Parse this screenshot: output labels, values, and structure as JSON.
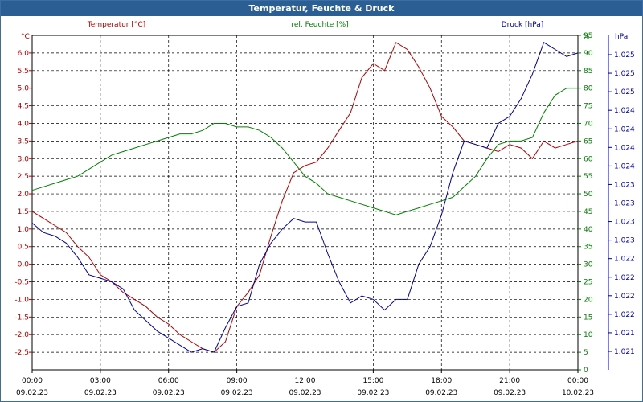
{
  "window": {
    "title": "Temperatur, Feuchte & Druck"
  },
  "colors": {
    "temp": "#b00000",
    "hum": "#008000",
    "press": "#00009c",
    "grid": "#000000"
  },
  "chart_data": {
    "type": "line",
    "title": "Temperatur, Feuchte & Druck",
    "axes": {
      "temp": {
        "label": "Temperatur [°C]",
        "unit": "°C",
        "min": -3.0,
        "max": 6.5,
        "ticks": [
          -2.5,
          -2.0,
          -1.5,
          -1.0,
          -0.5,
          0.0,
          0.5,
          1.0,
          1.5,
          2.0,
          2.5,
          3.0,
          3.5,
          4.0,
          4.5,
          5.0,
          5.5,
          6.0
        ],
        "tick_labels": [
          "-2.5",
          "-2.0",
          "-1.5",
          "-1.0",
          "-0.5",
          "0.0",
          "0.5",
          "1.0",
          "1.5",
          "2.0",
          "2.5",
          "3.0",
          "3.5",
          "4.0",
          "4.5",
          "5.0",
          "5.5",
          "6.0"
        ]
      },
      "hum": {
        "label": "rel. Feuchte [%]",
        "unit": "%",
        "min": 0,
        "max": 95,
        "ticks": [
          0,
          5,
          10,
          15,
          20,
          25,
          30,
          35,
          40,
          45,
          50,
          55,
          60,
          65,
          70,
          75,
          80,
          85,
          90,
          95
        ],
        "tick_labels": [
          "0",
          "5",
          "10",
          "15",
          "20",
          "25",
          "30",
          "35",
          "40",
          "45",
          "50",
          "55",
          "60",
          "65",
          "70",
          "75",
          "80",
          "85",
          "90",
          "95"
        ]
      },
      "press": {
        "label": "",
        "unit": "hPa",
        "tick_labels": [
          "1.025",
          "1.025",
          "1.025",
          "1.024",
          "1.024",
          "1.024",
          "1.024",
          "1.023",
          "1.023",
          "1.023",
          "1.023",
          "1.022",
          "1.022",
          "1.022",
          "1.022",
          "1.021",
          "1.021"
        ]
      }
    },
    "x_ticks": [
      {
        "time": "00:00",
        "date": "09.02.23"
      },
      {
        "time": "03:00",
        "date": "09.02.23"
      },
      {
        "time": "06:00",
        "date": "09.02.23"
      },
      {
        "time": "09:00",
        "date": "09.02.23"
      },
      {
        "time": "12:00",
        "date": "09.02.23"
      },
      {
        "time": "15:00",
        "date": "09.02.23"
      },
      {
        "time": "18:00",
        "date": "09.02.23"
      },
      {
        "time": "21:00",
        "date": "09.02.23"
      },
      {
        "time": "00:00",
        "date": "10.02.23"
      }
    ],
    "x_range_hours": [
      0,
      24
    ],
    "grid": true,
    "series": [
      {
        "name": "Temperatur [°C]",
        "axis": "temp",
        "x": [
          0,
          0.5,
          1,
          1.5,
          2,
          2.5,
          3,
          3.5,
          4,
          4.5,
          5,
          5.5,
          6,
          6.5,
          7,
          7.5,
          8,
          8.5,
          9,
          9.5,
          10,
          10.5,
          11,
          11.5,
          12,
          12.5,
          13,
          13.5,
          14,
          14.5,
          15,
          15.5,
          16,
          16.5,
          17,
          17.5,
          18,
          18.5,
          19,
          19.5,
          20,
          20.5,
          21,
          21.5,
          22,
          22.5,
          23,
          23.5,
          24
        ],
        "values": [
          1.5,
          1.3,
          1.1,
          0.9,
          0.5,
          0.2,
          -0.3,
          -0.5,
          -0.8,
          -1.0,
          -1.2,
          -1.5,
          -1.7,
          -2.0,
          -2.2,
          -2.4,
          -2.5,
          -2.2,
          -1.2,
          -0.8,
          -0.3,
          0.8,
          1.8,
          2.6,
          2.8,
          2.9,
          3.3,
          3.8,
          4.3,
          5.3,
          5.7,
          5.5,
          6.3,
          6.1,
          5.6,
          5.0,
          4.2,
          3.9,
          3.5,
          3.4,
          3.3,
          3.2,
          3.4,
          3.3,
          3.0,
          3.5,
          3.3,
          3.4,
          3.5
        ]
      },
      {
        "name": "rel. Feuchte [%]",
        "axis": "hum",
        "x": [
          0,
          0.5,
          1,
          1.5,
          2,
          2.5,
          3,
          3.5,
          4,
          4.5,
          5,
          5.5,
          6,
          6.5,
          7,
          7.5,
          8,
          8.5,
          9,
          9.5,
          10,
          10.5,
          11,
          11.5,
          12,
          12.5,
          13,
          13.5,
          14,
          14.5,
          15,
          15.5,
          16,
          16.5,
          17,
          17.5,
          18,
          18.5,
          19,
          19.5,
          20,
          20.5,
          21,
          21.5,
          22,
          22.5,
          23,
          23.5,
          24
        ],
        "values": [
          51,
          52,
          53,
          54,
          55,
          57,
          59,
          61,
          62,
          63,
          64,
          65,
          66,
          67,
          67,
          68,
          70,
          70,
          69,
          69,
          68,
          66,
          63,
          59,
          55,
          53,
          50,
          49,
          48,
          47,
          46,
          45,
          44,
          45,
          46,
          47,
          48,
          49,
          52,
          55,
          60,
          64,
          65,
          65,
          66,
          73,
          78,
          80,
          80
        ]
      },
      {
        "name": "Druck [hPa]",
        "axis": "press",
        "x": [
          0,
          0.5,
          1,
          1.5,
          2,
          2.5,
          3,
          3.5,
          4,
          4.5,
          5,
          5.5,
          6,
          6.5,
          7,
          7.5,
          8,
          8.5,
          9,
          9.5,
          10,
          10.5,
          11,
          11.5,
          12,
          12.5,
          13,
          13.5,
          14,
          14.5,
          15,
          15.5,
          16,
          16.5,
          17,
          17.5,
          18,
          18.5,
          19,
          19.5,
          20,
          20.5,
          21,
          21.5,
          22,
          22.5,
          23,
          23.5,
          24
        ],
        "values": [
          1.17,
          0.9,
          0.8,
          0.6,
          0.2,
          -0.3,
          -0.4,
          -0.5,
          -0.7,
          -1.3,
          -1.6,
          -1.9,
          -2.1,
          -2.3,
          -2.5,
          -2.4,
          -2.5,
          -1.8,
          -1.2,
          -1.1,
          0.0,
          0.6,
          1.0,
          1.3,
          1.2,
          1.2,
          0.3,
          -0.5,
          -1.1,
          -0.9,
          -1.0,
          -1.3,
          -1.0,
          -1.0,
          0.0,
          0.5,
          1.4,
          2.6,
          3.5,
          3.4,
          3.3,
          4.0,
          4.2,
          4.7,
          5.4,
          6.3,
          6.1,
          5.9,
          6.0
        ]
      }
    ],
    "druck_legend": "Druck [hPa]",
    "temp_unit_label": "°C",
    "hum_unit_label": "%",
    "press_unit_label": "hPa"
  }
}
